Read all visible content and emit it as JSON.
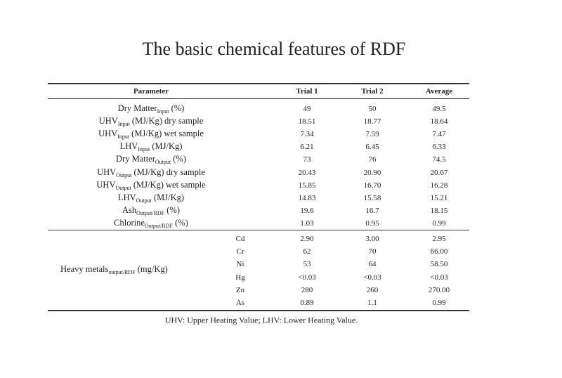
{
  "title": "The basic chemical features of RDF",
  "table": {
    "headers": [
      "Parameter",
      "Trial 1",
      "Trial 2",
      "Average"
    ],
    "rows": [
      {
        "param": {
          "main": "Dry Matter",
          "sub": "Input",
          "rest": " (%)"
        },
        "values": [
          "49",
          "50",
          "49.5"
        ]
      },
      {
        "param": {
          "main": "UHV",
          "sub": "Input",
          "rest": " (MJ/Kg) dry sample"
        },
        "values": [
          "18.51",
          "18.77",
          "18.64"
        ]
      },
      {
        "param": {
          "main": "UHV",
          "sub": "Input",
          "rest": " (MJ/Kg) wet sample"
        },
        "values": [
          "7.34",
          "7.59",
          "7.47"
        ]
      },
      {
        "param": {
          "main": "LHV",
          "sub": "Input",
          "rest": " (MJ/Kg)"
        },
        "values": [
          "6.21",
          "6.45",
          "6.33"
        ]
      },
      {
        "param": {
          "main": "Dry Matter",
          "sub": "Output",
          "rest": " (%)"
        },
        "values": [
          "73",
          "76",
          "74.5"
        ]
      },
      {
        "param": {
          "main": "UHV",
          "sub": "Output",
          "rest": " (MJ/Kg) dry sample"
        },
        "values": [
          "20.43",
          "20.90",
          "20.67"
        ]
      },
      {
        "param": {
          "main": "UHV",
          "sub": "Output",
          "rest": " (MJ/Kg) wet sample"
        },
        "values": [
          "15.85",
          "16.70",
          "16.28"
        ]
      },
      {
        "param": {
          "main": "LHV",
          "sub": "Output",
          "rest": " (MJ/Kg)"
        },
        "values": [
          "14.83",
          "15.58",
          "15.21"
        ]
      },
      {
        "param": {
          "main": "Ash",
          "sub": "Output/RDF",
          "rest": " (%)"
        },
        "values": [
          "19.6",
          "16.7",
          "18.15"
        ]
      },
      {
        "param": {
          "main": "Chlorine",
          "sub": "Output/RDF",
          "rest": " (%)"
        },
        "values": [
          "1.03",
          "0.95",
          "0.99"
        ]
      }
    ],
    "heavy_metals": {
      "label": {
        "main": "Heavy metals",
        "sub": "output/RDF",
        "rest": " (mg/Kg)"
      },
      "rows": [
        {
          "element": "Cd",
          "values": [
            "2.90",
            "3.00",
            "2.95"
          ]
        },
        {
          "element": "Cr",
          "values": [
            "62",
            "70",
            "66.00"
          ]
        },
        {
          "element": "Ni",
          "values": [
            "53",
            "64",
            "58.50"
          ]
        },
        {
          "element": "Hg",
          "values": [
            "<0.03",
            "<0.03",
            "<0.03"
          ]
        },
        {
          "element": "Zn",
          "values": [
            "280",
            "260",
            "270.00"
          ]
        },
        {
          "element": "As",
          "values": [
            "0.89",
            "1.1",
            "0.99"
          ]
        }
      ]
    }
  },
  "footnote": "UHV: Upper Heating Value; LHV: Lower Heating Value."
}
